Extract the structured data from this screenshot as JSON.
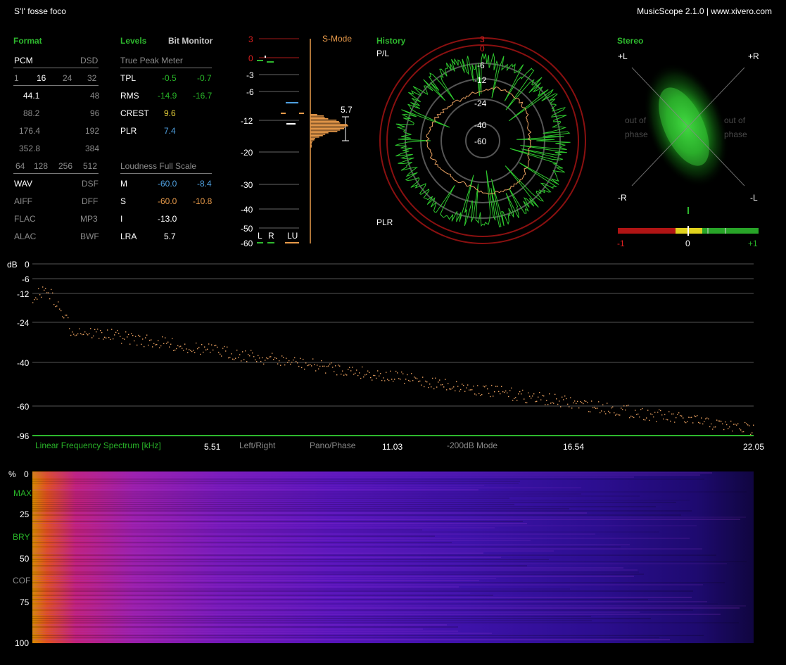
{
  "header": {
    "track_title": "S'I' fosse foco",
    "app_name": "MusicScope 2.1.0 | www.xivero.com"
  },
  "format": {
    "title": "Format",
    "row1": [
      "PCM",
      "DSD"
    ],
    "bits": [
      "1",
      "16",
      "24",
      "32"
    ],
    "rates": [
      [
        "44.1",
        "48"
      ],
      [
        "88.2",
        "96"
      ],
      [
        "176.4",
        "192"
      ],
      [
        "352.8",
        "384"
      ]
    ],
    "dsd_rates": [
      "64",
      "128",
      "256",
      "512"
    ],
    "codecs": [
      [
        "WAV",
        "DSF"
      ],
      [
        "AIFF",
        "DFF"
      ],
      [
        "FLAC",
        "MP3"
      ],
      [
        "ALAC",
        "BWF"
      ]
    ]
  },
  "levels": {
    "title": "Levels",
    "bit_monitor": "Bit Monitor",
    "tp_title": "True Peak Meter",
    "rows": [
      {
        "label": "TPL",
        "l": "-0.5",
        "r": "-0.7"
      },
      {
        "label": "RMS",
        "l": "-14.9",
        "r": "-16.7"
      },
      {
        "label": "CREST",
        "l": "9.6"
      },
      {
        "label": "PLR",
        "l": "7.4"
      }
    ],
    "lfs_title": "Loudness Full Scale",
    "lfs_rows": [
      {
        "label": "M",
        "a": "-60.0",
        "b": "-8.4"
      },
      {
        "label": "S",
        "a": "-60.0",
        "b": "-10.8"
      },
      {
        "label": "I",
        "a": "-13.0"
      },
      {
        "label": "LRA",
        "a": "5.7"
      }
    ]
  },
  "meter": {
    "scale": [
      "3",
      "0",
      "-3",
      "-6",
      "-12",
      "-20",
      "-30",
      "-40",
      "-50",
      "-60"
    ],
    "mode": "S-Mode",
    "lra_value": "5.7",
    "channels": [
      "L",
      "R",
      "LU"
    ]
  },
  "history": {
    "title": "History",
    "pl_label": "P/L",
    "plr_label": "PLR",
    "rings": [
      "3",
      "0",
      "-6",
      "-12",
      "-24",
      "-40",
      "-60"
    ]
  },
  "stereo": {
    "title": "Stereo",
    "corners": [
      "+L",
      "+R",
      "-R",
      "-L"
    ],
    "out_of_phase": [
      "out of",
      "phase"
    ],
    "corr_labels": [
      "-1",
      "0",
      "+1"
    ]
  },
  "spectrum": {
    "db_label": "dB",
    "y_ticks": [
      "0",
      "-6",
      "-12",
      "-24",
      "-40",
      "-60",
      "-96"
    ],
    "x_ticks": [
      "5.51",
      "11.03",
      "16.54",
      "22.05"
    ],
    "title": "Linear Frequency Spectrum [kHz]",
    "options": [
      "Left/Right",
      "Pano/Phase",
      "-200dB Mode"
    ]
  },
  "spectrogram": {
    "y_labels": [
      "%",
      "0",
      "MAX",
      "25",
      "BRY",
      "50",
      "COF",
      "75",
      "100"
    ]
  },
  "colors": {
    "accent_green": "#2eb82e",
    "peak_orange": "#e89a4a",
    "ring_red": "#8a1010"
  }
}
